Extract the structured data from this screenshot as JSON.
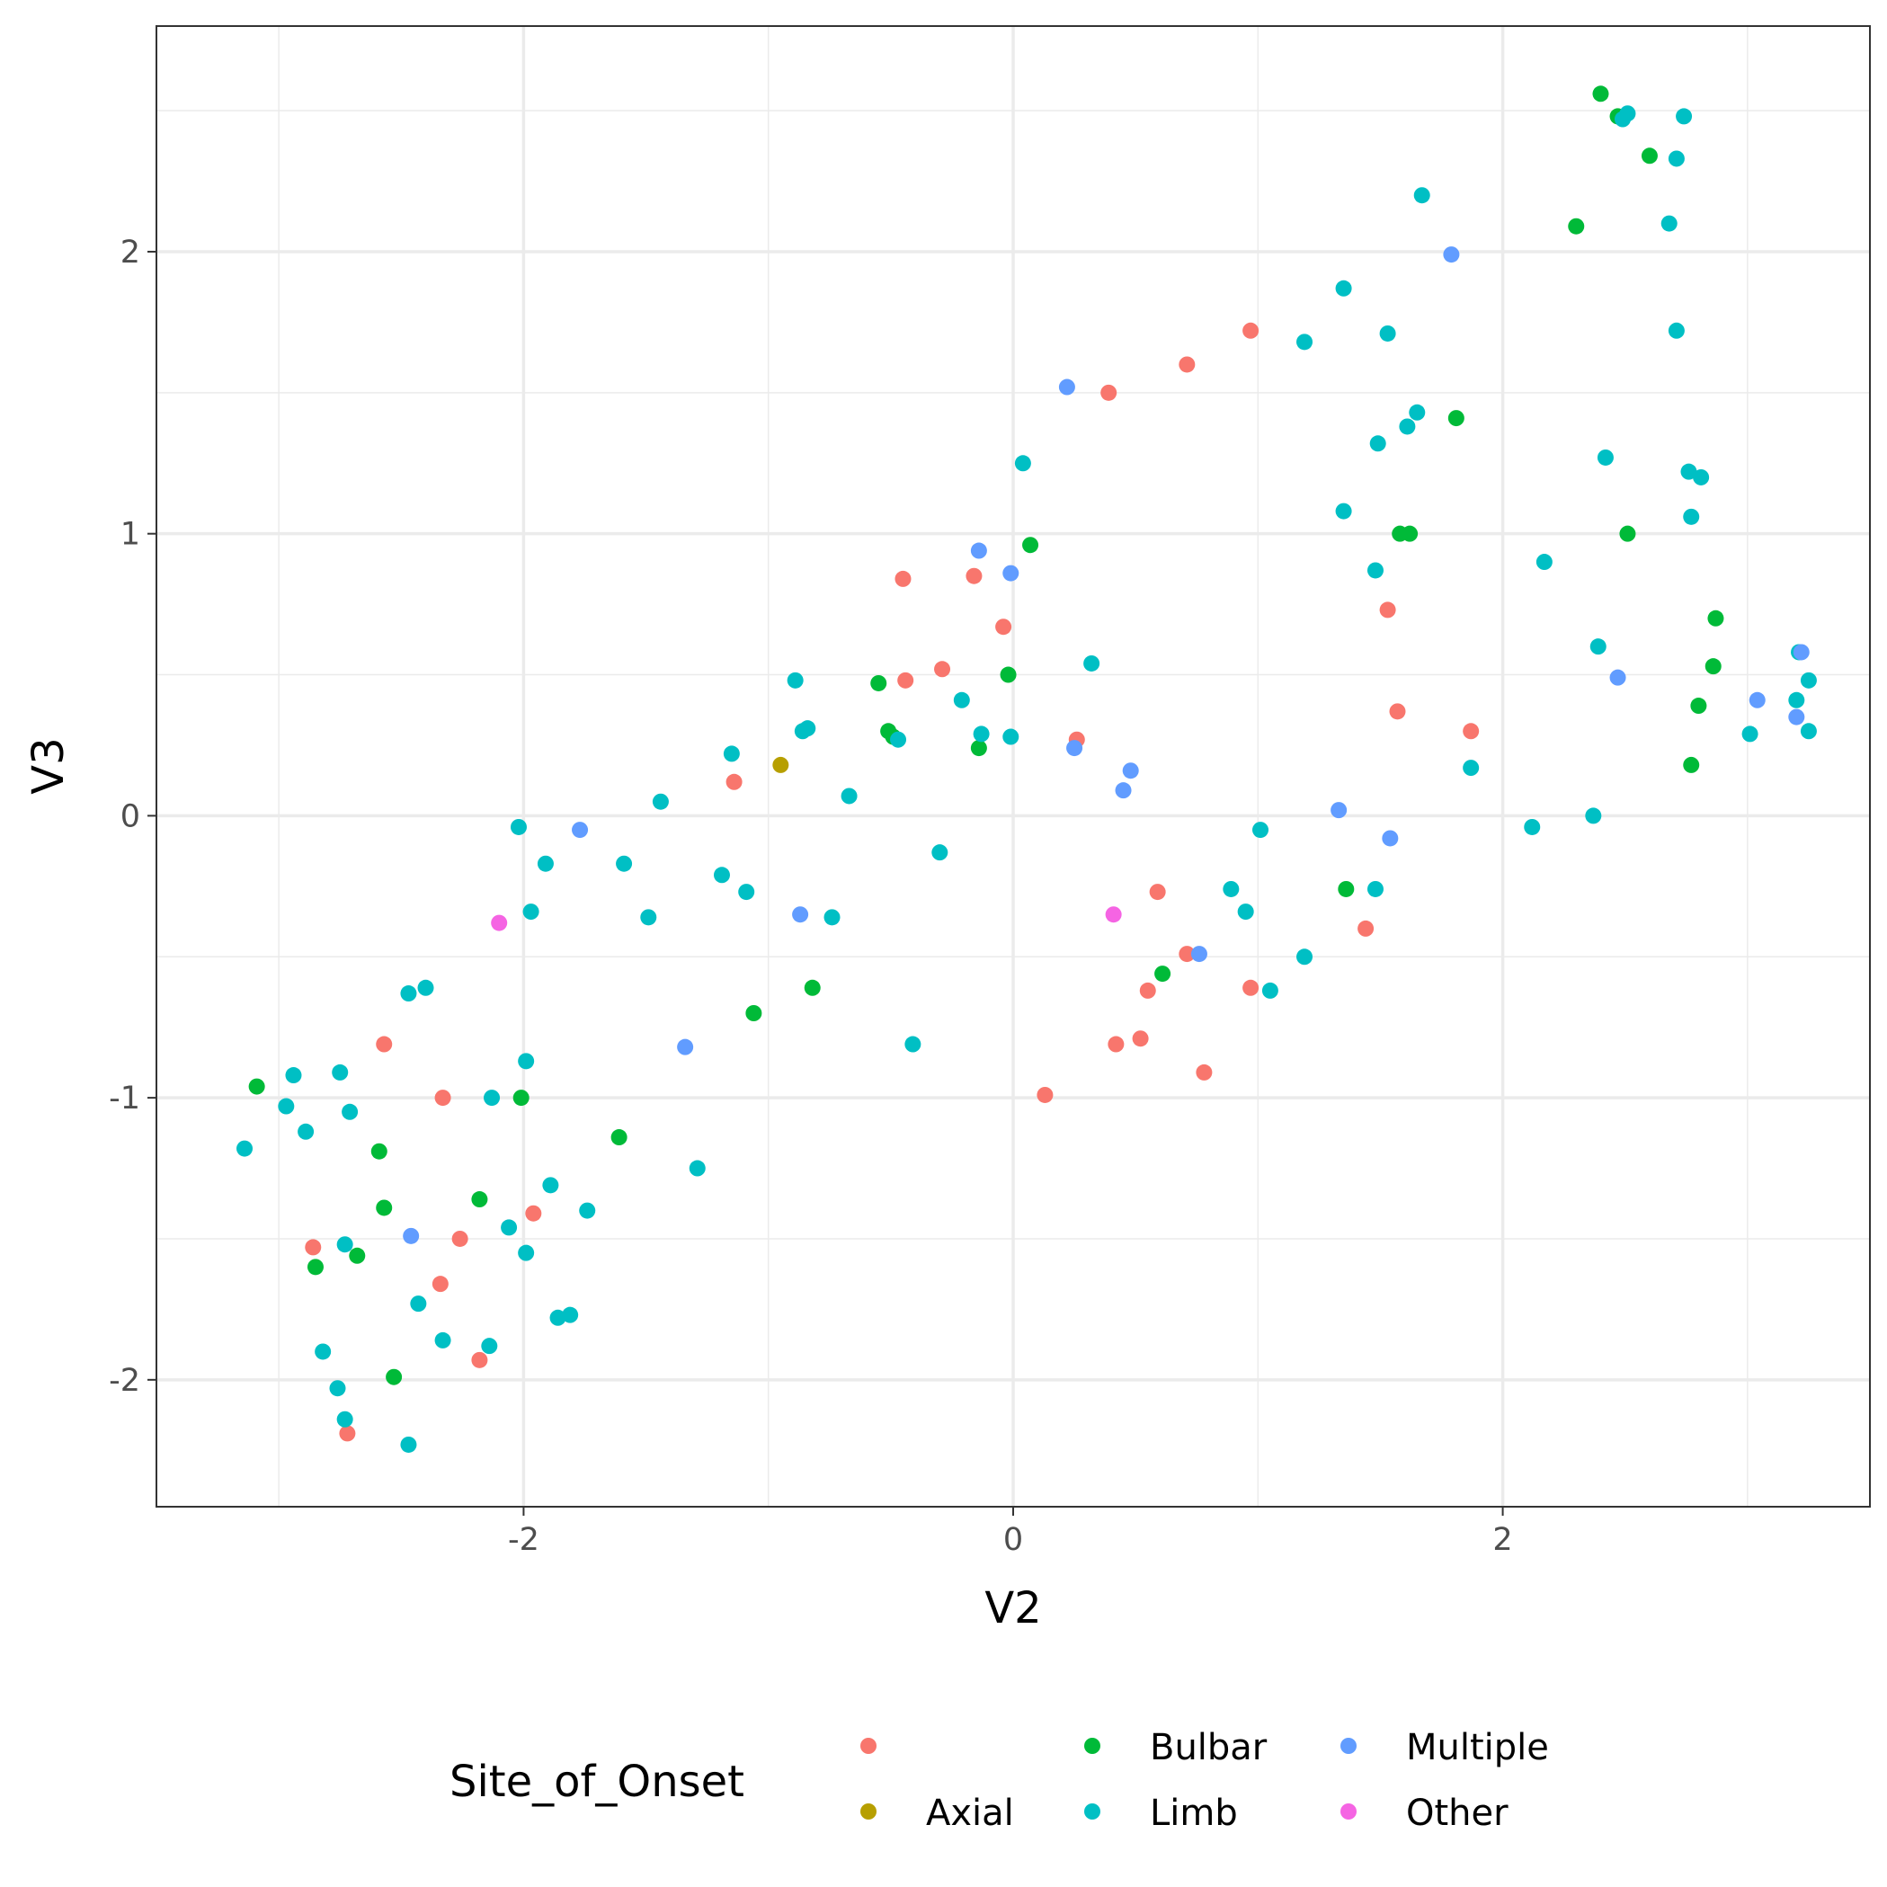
{
  "chart_data": {
    "type": "scatter",
    "xlabel": "V2",
    "ylabel": "V3",
    "xlim": [
      -3.5,
      3.5
    ],
    "ylim": [
      -2.45,
      2.8
    ],
    "x_ticks": [
      -2,
      0,
      2
    ],
    "x_tick_labels": [
      "-2",
      "0",
      "2"
    ],
    "y_ticks": [
      -2,
      -1,
      0,
      1,
      2
    ],
    "y_tick_labels": [
      "-2",
      "-1",
      "0",
      "1",
      "2"
    ],
    "grid": true,
    "legend": {
      "title": "Site_of_Onset",
      "position": "bottom",
      "entries": [
        {
          "label": "",
          "color": "#F8766D"
        },
        {
          "label": "Axial",
          "color": "#B79F00"
        },
        {
          "label": "Bulbar",
          "color": "#00BA38"
        },
        {
          "label": "Limb",
          "color": "#00BFC4"
        },
        {
          "label": "Multiple",
          "color": "#619CFF"
        },
        {
          "label": "Other",
          "color": "#F564E3"
        }
      ]
    },
    "series": [
      {
        "name": "",
        "color": "#F8766D",
        "points": [
          [
            0.97,
            1.72
          ],
          [
            0.71,
            1.6
          ],
          [
            0.39,
            1.5
          ],
          [
            -0.45,
            0.84
          ],
          [
            -0.16,
            0.85
          ],
          [
            -0.04,
            0.67
          ],
          [
            -0.29,
            0.52
          ],
          [
            -0.44,
            0.48
          ],
          [
            0.26,
            0.27
          ],
          [
            -1.14,
            0.12
          ],
          [
            1.53,
            0.73
          ],
          [
            1.57,
            0.37
          ],
          [
            1.87,
            0.3
          ],
          [
            0.59,
            -0.27
          ],
          [
            0.71,
            -0.49
          ],
          [
            0.55,
            -0.62
          ],
          [
            0.42,
            -0.81
          ],
          [
            0.52,
            -0.79
          ],
          [
            0.78,
            -0.91
          ],
          [
            0.97,
            -0.61
          ],
          [
            1.44,
            -0.4
          ],
          [
            0.13,
            -0.99
          ],
          [
            -2.57,
            -0.81
          ],
          [
            -2.33,
            -1.0
          ],
          [
            -2.86,
            -1.53
          ],
          [
            -2.26,
            -1.5
          ],
          [
            -1.96,
            -1.41
          ],
          [
            -2.34,
            -1.66
          ],
          [
            -2.18,
            -1.93
          ],
          [
            -2.72,
            -2.19
          ]
        ]
      },
      {
        "name": "Axial",
        "color": "#B79F00",
        "points": [
          [
            -0.95,
            0.18
          ]
        ]
      },
      {
        "name": "Bulbar",
        "color": "#00BA38",
        "points": [
          [
            2.4,
            2.56
          ],
          [
            2.47,
            2.48
          ],
          [
            2.6,
            2.34
          ],
          [
            2.3,
            2.09
          ],
          [
            1.81,
            1.41
          ],
          [
            1.58,
            1.0
          ],
          [
            1.62,
            1.0
          ],
          [
            2.51,
            1.0
          ],
          [
            0.07,
            0.96
          ],
          [
            2.87,
            0.7
          ],
          [
            2.86,
            0.53
          ],
          [
            2.8,
            0.39
          ],
          [
            2.77,
            0.18
          ],
          [
            -0.55,
            0.47
          ],
          [
            -0.02,
            0.5
          ],
          [
            -0.51,
            0.3
          ],
          [
            -0.49,
            0.28
          ],
          [
            -0.14,
            0.24
          ],
          [
            1.36,
            -0.26
          ],
          [
            0.61,
            -0.56
          ],
          [
            -1.06,
            -0.7
          ],
          [
            -0.82,
            -0.61
          ],
          [
            -3.09,
            -0.96
          ],
          [
            -2.01,
            -1.0
          ],
          [
            -2.59,
            -1.19
          ],
          [
            -2.57,
            -1.39
          ],
          [
            -2.18,
            -1.36
          ],
          [
            -1.61,
            -1.14
          ],
          [
            -2.85,
            -1.6
          ],
          [
            -2.68,
            -1.56
          ],
          [
            -2.53,
            -1.99
          ]
        ]
      },
      {
        "name": "Limb",
        "color": "#00BFC4",
        "points": [
          [
            2.49,
            2.47
          ],
          [
            2.51,
            2.49
          ],
          [
            2.74,
            2.48
          ],
          [
            2.71,
            2.33
          ],
          [
            1.67,
            2.2
          ],
          [
            2.68,
            2.1
          ],
          [
            2.71,
            1.72
          ],
          [
            1.35,
            1.87
          ],
          [
            1.19,
            1.68
          ],
          [
            1.53,
            1.71
          ],
          [
            1.65,
            1.43
          ],
          [
            1.61,
            1.38
          ],
          [
            1.49,
            1.32
          ],
          [
            2.42,
            1.27
          ],
          [
            2.76,
            1.22
          ],
          [
            2.81,
            1.2
          ],
          [
            2.77,
            1.06
          ],
          [
            1.35,
            1.08
          ],
          [
            1.48,
            0.87
          ],
          [
            2.17,
            0.9
          ],
          [
            0.04,
            1.25
          ],
          [
            2.39,
            0.6
          ],
          [
            3.21,
            0.58
          ],
          [
            3.25,
            0.48
          ],
          [
            3.2,
            0.41
          ],
          [
            3.01,
            0.29
          ],
          [
            3.25,
            0.3
          ],
          [
            1.87,
            0.17
          ],
          [
            2.12,
            -0.04
          ],
          [
            2.37,
            0.0
          ],
          [
            -0.21,
            0.41
          ],
          [
            -0.13,
            0.29
          ],
          [
            -0.01,
            0.28
          ],
          [
            0.32,
            0.54
          ],
          [
            -0.47,
            0.27
          ],
          [
            -0.84,
            0.31
          ],
          [
            -0.86,
            0.3
          ],
          [
            -0.89,
            0.48
          ],
          [
            -0.67,
            0.07
          ],
          [
            -1.15,
            0.22
          ],
          [
            -1.44,
            0.05
          ],
          [
            -2.02,
            -0.04
          ],
          [
            -1.91,
            -0.17
          ],
          [
            -1.59,
            -0.17
          ],
          [
            -1.19,
            -0.21
          ],
          [
            -1.09,
            -0.27
          ],
          [
            -1.97,
            -0.34
          ],
          [
            -1.49,
            -0.36
          ],
          [
            -0.74,
            -0.36
          ],
          [
            -0.3,
            -0.13
          ],
          [
            1.01,
            -0.05
          ],
          [
            0.89,
            -0.26
          ],
          [
            0.95,
            -0.34
          ],
          [
            1.48,
            -0.26
          ],
          [
            1.19,
            -0.5
          ],
          [
            1.05,
            -0.62
          ],
          [
            -0.41,
            -0.81
          ],
          [
            -1.29,
            -1.25
          ],
          [
            -2.47,
            -0.63
          ],
          [
            -2.4,
            -0.61
          ],
          [
            -2.75,
            -0.91
          ],
          [
            -2.94,
            -0.92
          ],
          [
            -2.97,
            -1.03
          ],
          [
            -2.89,
            -1.12
          ],
          [
            -2.71,
            -1.05
          ],
          [
            -3.14,
            -1.18
          ],
          [
            -2.13,
            -1.0
          ],
          [
            -1.99,
            -0.87
          ],
          [
            -1.89,
            -1.31
          ],
          [
            -1.74,
            -1.4
          ],
          [
            -2.06,
            -1.46
          ],
          [
            -1.99,
            -1.55
          ],
          [
            -2.73,
            -1.52
          ],
          [
            -2.43,
            -1.73
          ],
          [
            -2.33,
            -1.86
          ],
          [
            -2.14,
            -1.88
          ],
          [
            -1.86,
            -1.78
          ],
          [
            -1.81,
            -1.77
          ],
          [
            -2.82,
            -1.9
          ],
          [
            -2.76,
            -2.03
          ],
          [
            -2.73,
            -2.14
          ],
          [
            -2.47,
            -2.23
          ]
        ]
      },
      {
        "name": "Multiple",
        "color": "#619CFF",
        "points": [
          [
            1.79,
            1.99
          ],
          [
            0.22,
            1.52
          ],
          [
            -0.14,
            0.94
          ],
          [
            -0.01,
            0.86
          ],
          [
            2.47,
            0.49
          ],
          [
            3.22,
            0.58
          ],
          [
            3.04,
            0.41
          ],
          [
            3.2,
            0.35
          ],
          [
            0.25,
            0.24
          ],
          [
            0.48,
            0.16
          ],
          [
            0.45,
            0.09
          ],
          [
            1.33,
            0.02
          ],
          [
            1.54,
            -0.08
          ],
          [
            0.76,
            -0.49
          ],
          [
            -0.87,
            -0.35
          ],
          [
            -1.77,
            -0.05
          ],
          [
            -1.34,
            -0.82
          ],
          [
            -2.46,
            -1.49
          ]
        ]
      },
      {
        "name": "Other",
        "color": "#F564E3",
        "points": [
          [
            -2.1,
            -0.38
          ],
          [
            0.41,
            -0.35
          ]
        ]
      }
    ]
  }
}
